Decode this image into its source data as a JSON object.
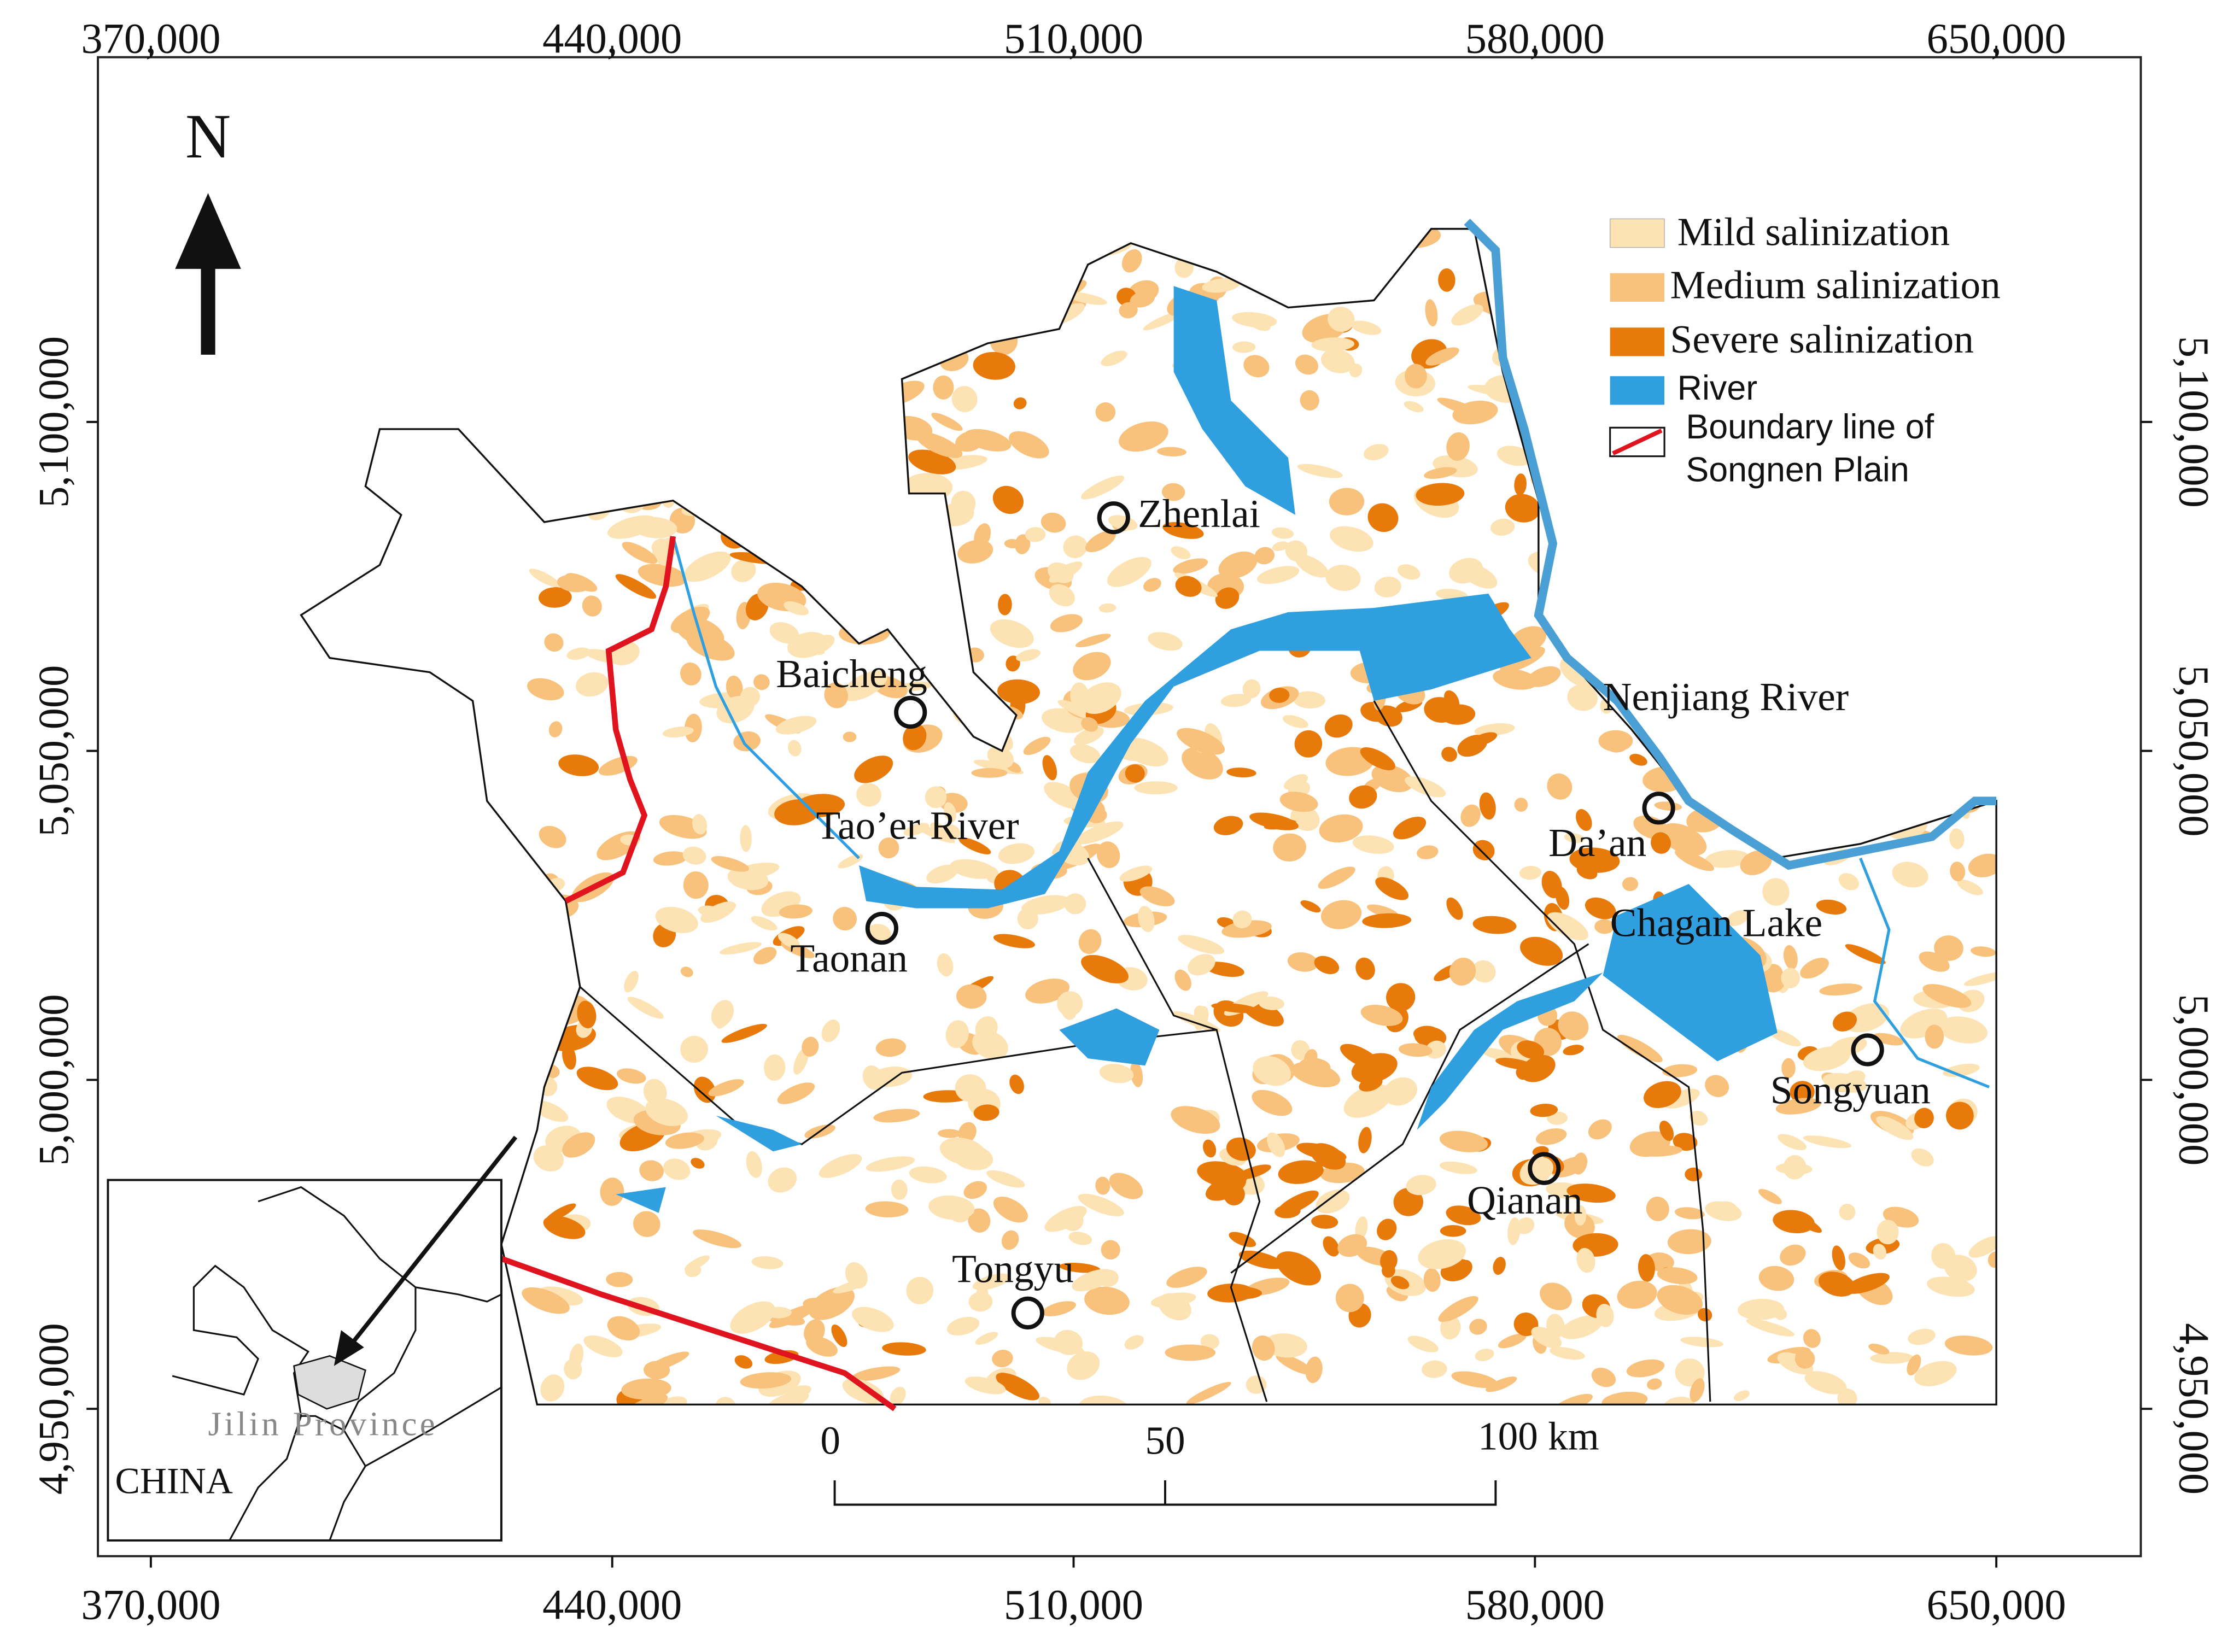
{
  "north_arrow": "N",
  "x_ticks": [
    {
      "value": 370000,
      "label": "370,000"
    },
    {
      "value": 440000,
      "label": "440,000"
    },
    {
      "value": 510000,
      "label": "510,000"
    },
    {
      "value": 580000,
      "label": "580,000"
    },
    {
      "value": 650000,
      "label": "650,000"
    }
  ],
  "y_ticks": [
    {
      "value": 5100000,
      "label": "5,100,000"
    },
    {
      "value": 5050000,
      "label": "5,050,000"
    },
    {
      "value": 5000000,
      "label": "5,000,000"
    },
    {
      "value": 4950000,
      "label": "4,950,000"
    }
  ],
  "legend": [
    "Mild salinization",
    "Medium salinization",
    "Severe salinization",
    "River",
    "Boundary line of\nSongnen Plain"
  ],
  "places": [
    "Zhenlai",
    "Baicheng",
    "Taonan",
    "Tongyu",
    "Qianan",
    "Da’an",
    "Songyuan"
  ],
  "water": [
    "Nenjiang River",
    "Tao’er River",
    "Chagan Lake"
  ],
  "scale_bar": [
    "0",
    "50",
    "100 km"
  ],
  "inset": {
    "region": "Jilin Province",
    "country": "CHINA"
  }
}
